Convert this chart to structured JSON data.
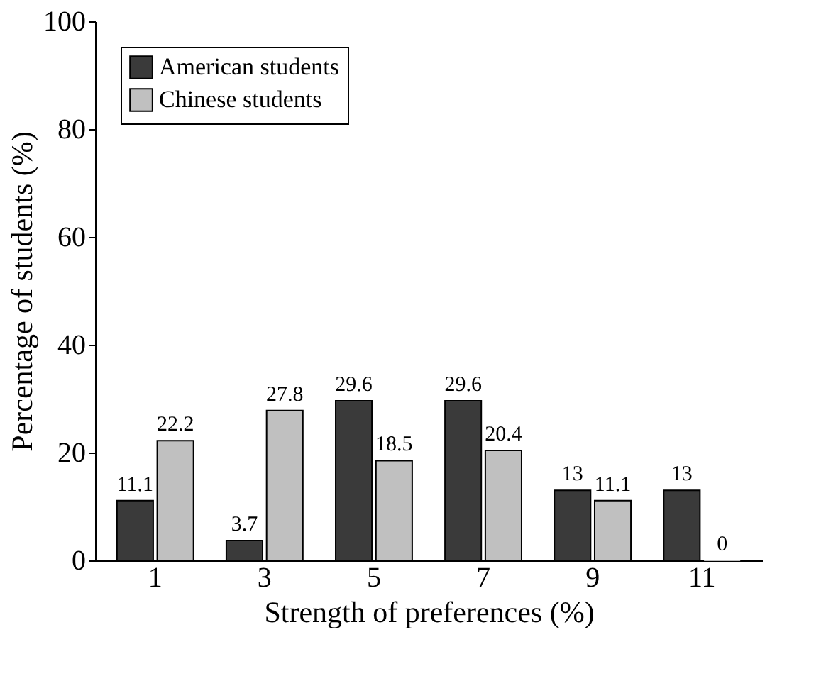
{
  "chart_data": {
    "type": "bar",
    "xlabel": "Strength of preferences (%)",
    "ylabel": "Percentage of students (%)",
    "categories": [
      "1",
      "3",
      "5",
      "7",
      "9",
      "11"
    ],
    "series": [
      {
        "name": "American students",
        "color": "#3a3a3a",
        "values": [
          11.1,
          3.7,
          29.6,
          29.6,
          13,
          13
        ]
      },
      {
        "name": "Chinese students",
        "color": "#c0c0c0",
        "values": [
          22.2,
          27.8,
          18.5,
          20.4,
          11.1,
          0
        ]
      }
    ],
    "ylim": [
      0,
      100
    ],
    "yticks": [
      0,
      20,
      40,
      60,
      80,
      100
    ],
    "data_labels": true,
    "legend": "top left",
    "grid": false
  }
}
